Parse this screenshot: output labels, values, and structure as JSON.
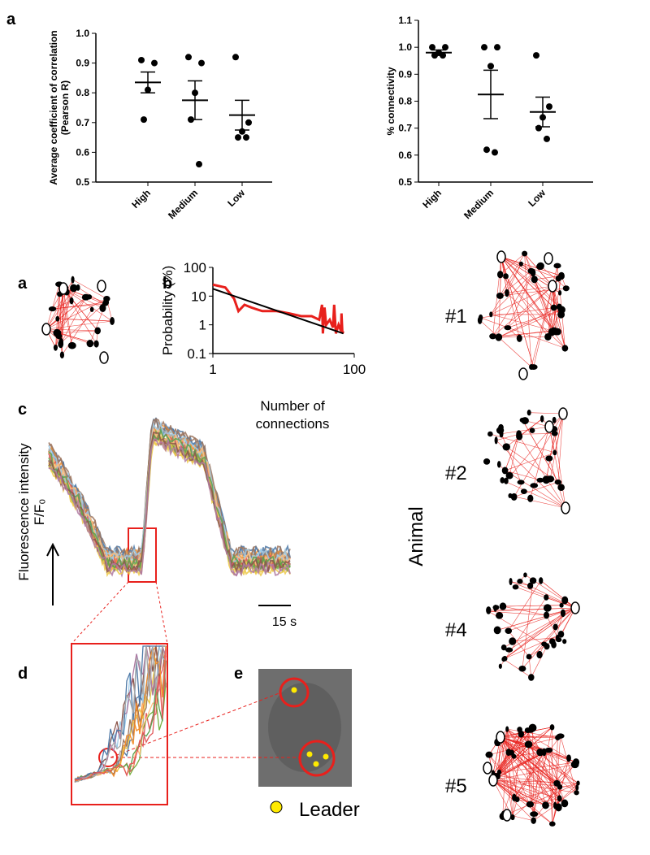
{
  "chart_data": [
    {
      "type": "scatter",
      "panel": "a",
      "ylabel": [
        "Average coefficient of correlation",
        "(Pearson  R)"
      ],
      "categories": [
        "High",
        "Medium",
        "Low"
      ],
      "points": [
        [
          0.91,
          0.9,
          0.81,
          0.71
        ],
        [
          0.92,
          0.9,
          0.8,
          0.71,
          0.56
        ],
        [
          0.92,
          0.7,
          0.67,
          0.65,
          0.65
        ]
      ],
      "means": [
        0.835,
        0.775,
        0.725
      ],
      "sems": [
        0.035,
        0.065,
        0.05
      ],
      "ylim": [
        0.5,
        1.0
      ],
      "yticks": [
        0.5,
        0.6,
        0.7,
        0.8,
        0.9,
        {
          "value": 1,
          "label": "1.0"
        }
      ]
    },
    {
      "type": "scatter",
      "ylabel": [
        "% connectivity"
      ],
      "categories": [
        "High",
        "Medium",
        "Low"
      ],
      "points": [
        [
          1,
          1,
          0.98,
          0.97,
          0.97
        ],
        [
          1,
          1,
          0.93,
          0.62,
          0.61
        ],
        [
          0.97,
          0.78,
          0.74,
          0.7,
          0.66
        ]
      ],
      "means": [
        0.98,
        0.825,
        0.76
      ],
      "sems": [
        0.01,
        0.09,
        0.055
      ],
      "ylim": [
        0.5,
        1.1
      ],
      "yticks": [
        0.5,
        0.6,
        0.7,
        0.8,
        0.9,
        {
          "value": 1,
          "label": "1.0"
        },
        1.1
      ]
    },
    {
      "type": "line",
      "panel": "b",
      "ylabel": "Probability (%)",
      "xlabel": "Number of connections",
      "log_x": true,
      "log_y": true,
      "xlim": [
        1,
        100
      ],
      "ylim": [
        0.1,
        100
      ],
      "xticks": [
        1,
        100
      ],
      "yticks": [
        0.1,
        1,
        10,
        100
      ],
      "series": [
        {
          "color": "#e8201c",
          "x": [
            1,
            1.5,
            2,
            2.3,
            2.8,
            3.5,
            5,
            8,
            12,
            18,
            25,
            32,
            35,
            36,
            38,
            40,
            45,
            50,
            52,
            55,
            60,
            65,
            66,
            68,
            70
          ],
          "values": [
            25,
            20,
            8,
            3,
            5,
            4,
            3,
            3,
            2.5,
            2,
            2,
            1.5,
            5,
            0.5,
            4,
            1,
            1.5,
            0.8,
            5,
            0.5,
            1,
            0.6,
            2.5,
            0.5,
            0.6
          ]
        },
        {
          "color": "#000000",
          "x": [
            1,
            70
          ],
          "values": [
            18,
            0.5
          ]
        }
      ]
    }
  ],
  "panels": {
    "a2": "a",
    "c": "c",
    "d": "d",
    "e": "e",
    "trace_ylabel": "Fluorescence intensity",
    "trace_unit": "F/F₀",
    "scalebar": "15 s",
    "animal": "Animal",
    "animals": [
      "#1",
      "#2",
      "#4",
      "#5"
    ],
    "legend": "Leader"
  }
}
